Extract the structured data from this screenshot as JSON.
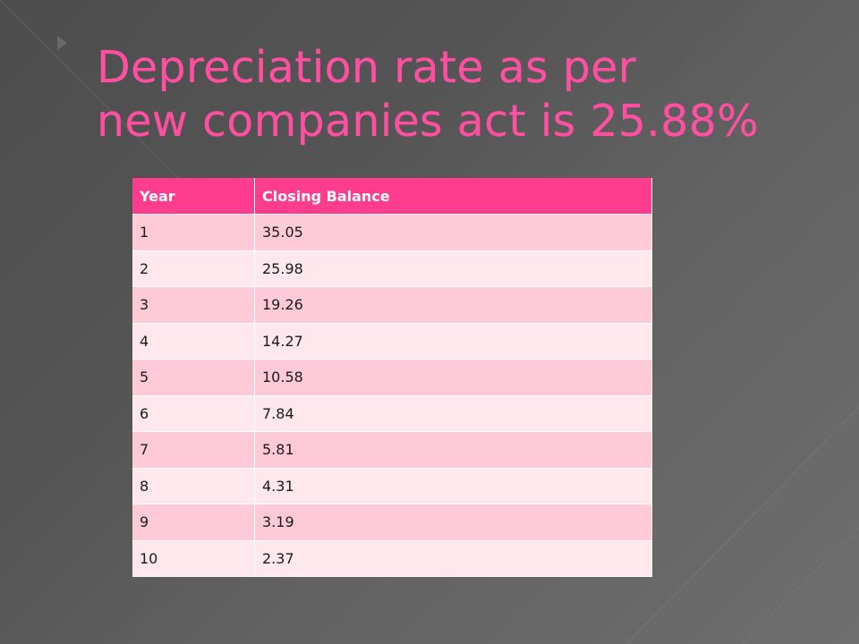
{
  "title": {
    "line1": "Depreciation rate as per",
    "line2": "new companies act is 25.88%"
  },
  "table": {
    "headers": [
      "Year",
      "Closing Balance"
    ],
    "rows": [
      [
        "1",
        "35.05"
      ],
      [
        "2",
        "25.98"
      ],
      [
        "3",
        "19.26"
      ],
      [
        "4",
        "14.27"
      ],
      [
        "5",
        "10.58"
      ],
      [
        "6",
        "7.84"
      ],
      [
        "7",
        "5.81"
      ],
      [
        "8",
        "4.31"
      ],
      [
        "9",
        "3.19"
      ],
      [
        "10",
        "2.37"
      ]
    ]
  },
  "colors": {
    "title": "#ff4fa0",
    "header_bg": "#ff3d8e",
    "row_odd": "#ffcad8",
    "row_even": "#ffe7ee",
    "background": "#555555"
  }
}
